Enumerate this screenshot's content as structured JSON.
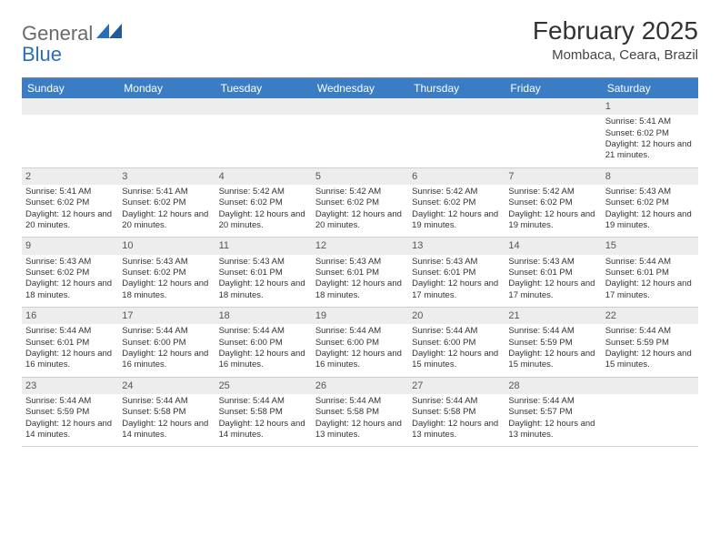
{
  "logo": {
    "text1": "General",
    "text2": "Blue"
  },
  "title": "February 2025",
  "location": "Mombaca, Ceara, Brazil",
  "colors": {
    "header_bg": "#3b7dc4",
    "header_fg": "#ffffff",
    "daynum_bg": "#ededed",
    "text": "#333333",
    "logo_blue": "#2a6db8"
  },
  "weekdays": [
    "Sunday",
    "Monday",
    "Tuesday",
    "Wednesday",
    "Thursday",
    "Friday",
    "Saturday"
  ],
  "weeks": [
    [
      null,
      null,
      null,
      null,
      null,
      null,
      {
        "d": "1",
        "sr": "5:41 AM",
        "ss": "6:02 PM",
        "dl": "12 hours and 21 minutes."
      }
    ],
    [
      {
        "d": "2",
        "sr": "5:41 AM",
        "ss": "6:02 PM",
        "dl": "12 hours and 20 minutes."
      },
      {
        "d": "3",
        "sr": "5:41 AM",
        "ss": "6:02 PM",
        "dl": "12 hours and 20 minutes."
      },
      {
        "d": "4",
        "sr": "5:42 AM",
        "ss": "6:02 PM",
        "dl": "12 hours and 20 minutes."
      },
      {
        "d": "5",
        "sr": "5:42 AM",
        "ss": "6:02 PM",
        "dl": "12 hours and 20 minutes."
      },
      {
        "d": "6",
        "sr": "5:42 AM",
        "ss": "6:02 PM",
        "dl": "12 hours and 19 minutes."
      },
      {
        "d": "7",
        "sr": "5:42 AM",
        "ss": "6:02 PM",
        "dl": "12 hours and 19 minutes."
      },
      {
        "d": "8",
        "sr": "5:43 AM",
        "ss": "6:02 PM",
        "dl": "12 hours and 19 minutes."
      }
    ],
    [
      {
        "d": "9",
        "sr": "5:43 AM",
        "ss": "6:02 PM",
        "dl": "12 hours and 18 minutes."
      },
      {
        "d": "10",
        "sr": "5:43 AM",
        "ss": "6:02 PM",
        "dl": "12 hours and 18 minutes."
      },
      {
        "d": "11",
        "sr": "5:43 AM",
        "ss": "6:01 PM",
        "dl": "12 hours and 18 minutes."
      },
      {
        "d": "12",
        "sr": "5:43 AM",
        "ss": "6:01 PM",
        "dl": "12 hours and 18 minutes."
      },
      {
        "d": "13",
        "sr": "5:43 AM",
        "ss": "6:01 PM",
        "dl": "12 hours and 17 minutes."
      },
      {
        "d": "14",
        "sr": "5:43 AM",
        "ss": "6:01 PM",
        "dl": "12 hours and 17 minutes."
      },
      {
        "d": "15",
        "sr": "5:44 AM",
        "ss": "6:01 PM",
        "dl": "12 hours and 17 minutes."
      }
    ],
    [
      {
        "d": "16",
        "sr": "5:44 AM",
        "ss": "6:01 PM",
        "dl": "12 hours and 16 minutes."
      },
      {
        "d": "17",
        "sr": "5:44 AM",
        "ss": "6:00 PM",
        "dl": "12 hours and 16 minutes."
      },
      {
        "d": "18",
        "sr": "5:44 AM",
        "ss": "6:00 PM",
        "dl": "12 hours and 16 minutes."
      },
      {
        "d": "19",
        "sr": "5:44 AM",
        "ss": "6:00 PM",
        "dl": "12 hours and 16 minutes."
      },
      {
        "d": "20",
        "sr": "5:44 AM",
        "ss": "6:00 PM",
        "dl": "12 hours and 15 minutes."
      },
      {
        "d": "21",
        "sr": "5:44 AM",
        "ss": "5:59 PM",
        "dl": "12 hours and 15 minutes."
      },
      {
        "d": "22",
        "sr": "5:44 AM",
        "ss": "5:59 PM",
        "dl": "12 hours and 15 minutes."
      }
    ],
    [
      {
        "d": "23",
        "sr": "5:44 AM",
        "ss": "5:59 PM",
        "dl": "12 hours and 14 minutes."
      },
      {
        "d": "24",
        "sr": "5:44 AM",
        "ss": "5:58 PM",
        "dl": "12 hours and 14 minutes."
      },
      {
        "d": "25",
        "sr": "5:44 AM",
        "ss": "5:58 PM",
        "dl": "12 hours and 14 minutes."
      },
      {
        "d": "26",
        "sr": "5:44 AM",
        "ss": "5:58 PM",
        "dl": "12 hours and 13 minutes."
      },
      {
        "d": "27",
        "sr": "5:44 AM",
        "ss": "5:58 PM",
        "dl": "12 hours and 13 minutes."
      },
      {
        "d": "28",
        "sr": "5:44 AM",
        "ss": "5:57 PM",
        "dl": "12 hours and 13 minutes."
      },
      null
    ]
  ],
  "labels": {
    "sunrise": "Sunrise:",
    "sunset": "Sunset:",
    "daylight": "Daylight:"
  }
}
